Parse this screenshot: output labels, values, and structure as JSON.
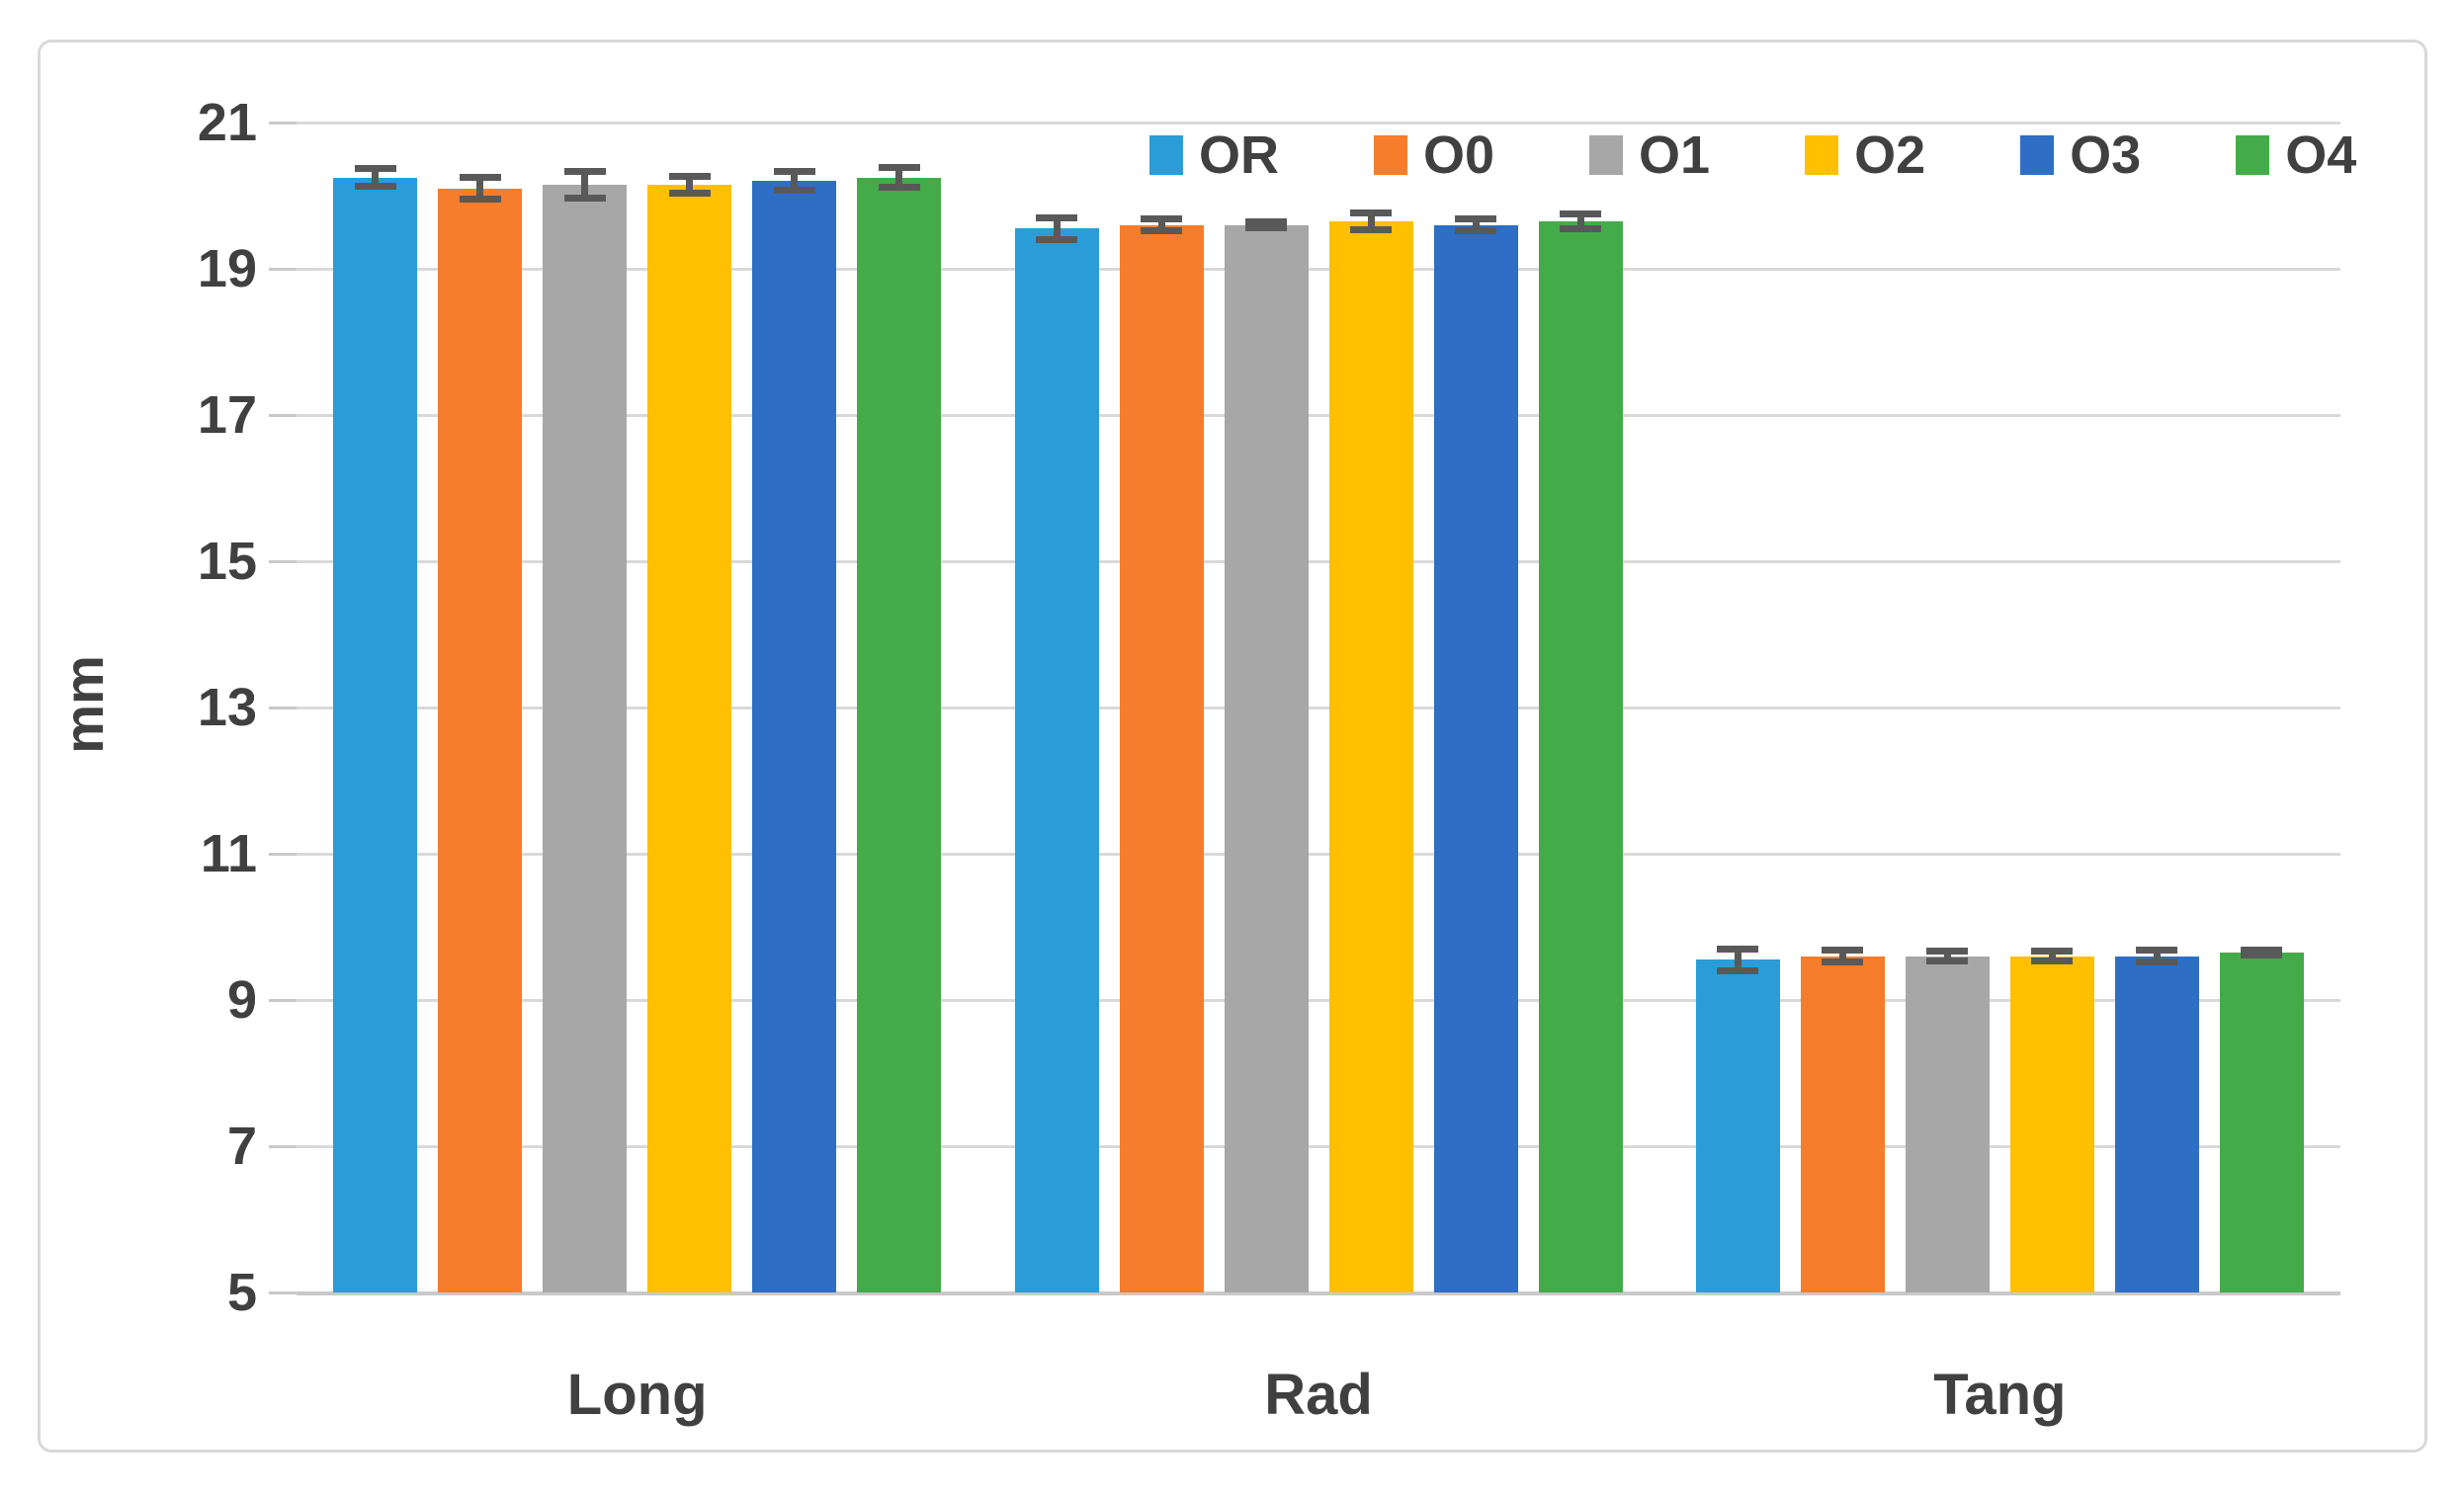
{
  "figure": {
    "background": "#ffffff",
    "border_color": "#d9d9d9"
  },
  "chart_data": {
    "type": "bar",
    "title": "",
    "xlabel": "",
    "ylabel": "mm",
    "categories": [
      "Long",
      "Rad",
      "Tang"
    ],
    "series": [
      {
        "name": "OR",
        "color": "#2A9DD8",
        "values": [
          20.25,
          19.55,
          9.55
        ],
        "errors": [
          0.12,
          0.15,
          0.15
        ]
      },
      {
        "name": "O0",
        "color": "#F57D2B",
        "values": [
          20.1,
          19.6,
          9.6
        ],
        "errors": [
          0.15,
          0.08,
          0.08
        ]
      },
      {
        "name": "O1",
        "color": "#A7A7A7",
        "values": [
          20.15,
          19.6,
          9.6
        ],
        "errors": [
          0.18,
          0.04,
          0.07
        ]
      },
      {
        "name": "O2",
        "color": "#FEC001",
        "values": [
          20.15,
          19.65,
          9.6
        ],
        "errors": [
          0.12,
          0.12,
          0.07
        ]
      },
      {
        "name": "O3",
        "color": "#2E6EC4",
        "values": [
          20.2,
          19.6,
          9.6
        ],
        "errors": [
          0.13,
          0.08,
          0.08
        ]
      },
      {
        "name": "O4",
        "color": "#44AB49",
        "values": [
          20.25,
          19.65,
          9.65
        ],
        "errors": [
          0.13,
          0.1,
          0.03
        ]
      }
    ],
    "y_axis": {
      "min": 5,
      "max": 21,
      "step": 2,
      "tick_labels": [
        "5",
        "7",
        "9",
        "11",
        "13",
        "15",
        "17",
        "19",
        "21"
      ]
    },
    "ylim": [
      5,
      21
    ],
    "grid": true,
    "legend_position": "top-right",
    "colors": {
      "text": "#404040",
      "gridline": "#d9d9d9",
      "axis_line": "#c9c9c9",
      "error_bar": "#595959"
    }
  }
}
